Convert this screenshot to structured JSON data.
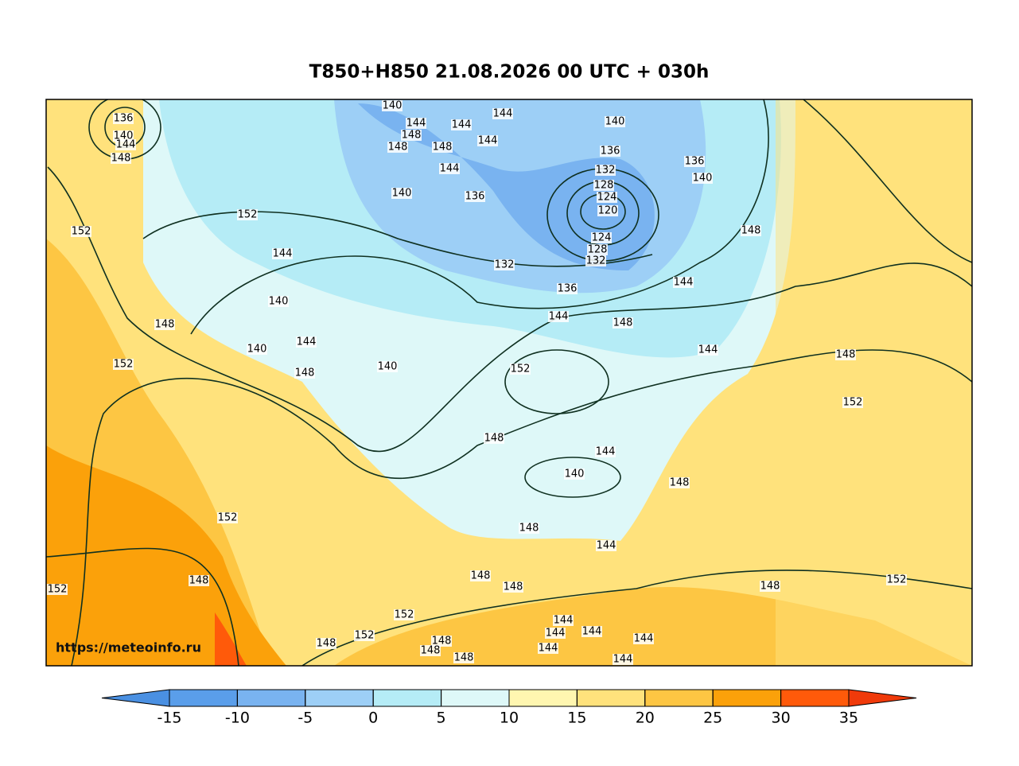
{
  "title": "T850+H850 21.08.2026 00 UTC + 030h",
  "watermark": "https://meteoinfo.ru",
  "colorbar": {
    "ticks": [
      -15,
      -10,
      -5,
      0,
      5,
      10,
      15,
      20,
      25,
      30,
      35
    ],
    "colors": [
      "#4a90e2",
      "#5a9eea",
      "#79b3f0",
      "#9dcff6",
      "#b5ecf6",
      "#def8f8",
      "#fff6b0",
      "#ffe27c",
      "#fdc643",
      "#fba10a",
      "#ff5a0a",
      "#f03a0a"
    ]
  },
  "contour_labels": [
    "136",
    "140",
    "144",
    "148",
    "140",
    "144",
    "144",
    "144",
    "148",
    "148",
    "148",
    "144",
    "144",
    "140",
    "136",
    "140",
    "136",
    "136",
    "140",
    "132",
    "128",
    "124",
    "120",
    "124",
    "128",
    "132",
    "152",
    "152",
    "148",
    "144",
    "132",
    "140",
    "136",
    "144",
    "148",
    "144",
    "148",
    "140",
    "144",
    "144",
    "152",
    "140",
    "148",
    "152",
    "148",
    "152",
    "148",
    "144",
    "140",
    "148",
    "152",
    "148",
    "144",
    "148",
    "148",
    "148",
    "148",
    "152",
    "152",
    "152",
    "144",
    "144",
    "144",
    "144",
    "148",
    "152",
    "148",
    "144",
    "144",
    "148",
    "148"
  ]
}
